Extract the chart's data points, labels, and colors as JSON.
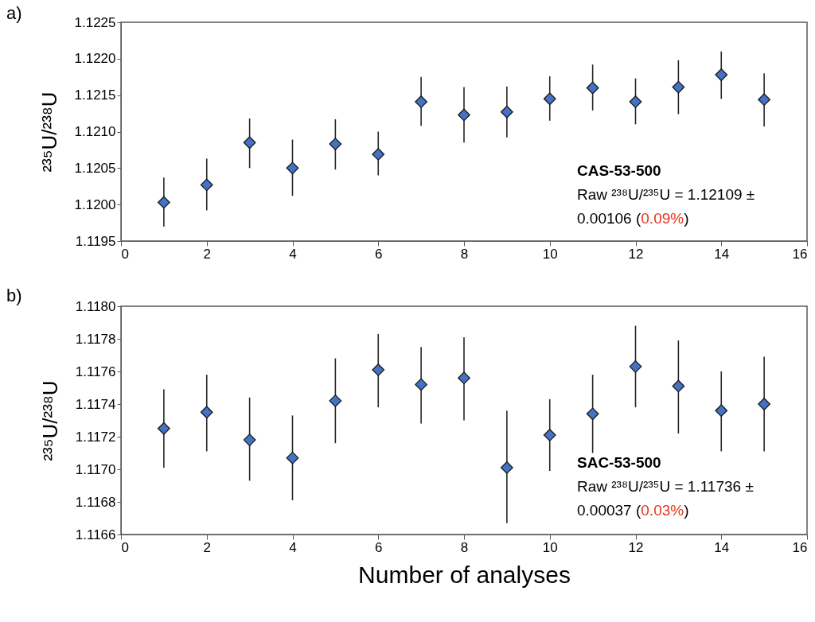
{
  "chart_data": [
    {
      "type": "scatter",
      "ylabel": "²³⁵U/²³⁸U",
      "marker": "diamond",
      "color": "#4472c4",
      "x": [
        1,
        2,
        3,
        4,
        5,
        6,
        7,
        8,
        9,
        10,
        11,
        12,
        13,
        14,
        15
      ],
      "values": [
        1.12003,
        1.12027,
        1.12085,
        1.1205,
        1.12083,
        1.12069,
        1.12141,
        1.12123,
        1.12127,
        1.12145,
        1.1216,
        1.12141,
        1.12161,
        1.12178,
        1.12144
      ],
      "errors": [
        [
          1.1197,
          1.12037
        ],
        [
          1.11992,
          1.12063
        ],
        [
          1.1205,
          1.12118
        ],
        [
          1.12012,
          1.12089
        ],
        [
          1.12048,
          1.12117
        ],
        [
          1.1204,
          1.121
        ],
        [
          1.12108,
          1.12175
        ],
        [
          1.12085,
          1.12161
        ],
        [
          1.12092,
          1.12162
        ],
        [
          1.12115,
          1.12176
        ],
        [
          1.12129,
          1.12192
        ],
        [
          1.1211,
          1.12173
        ],
        [
          1.12124,
          1.12198
        ],
        [
          1.12145,
          1.1221
        ],
        [
          1.12107,
          1.1218
        ]
      ],
      "xlim": [
        0,
        16
      ],
      "xticks": [
        0,
        2,
        4,
        6,
        8,
        10,
        12,
        14,
        16
      ],
      "ylim": [
        1.1195,
        1.1225
      ],
      "yticks": [
        1.1195,
        {
          "value": 1.12,
          "label": "1.1200"
        },
        1.1205,
        {
          "value": 1.121,
          "label": "1.1210"
        },
        1.1215,
        {
          "value": 1.122,
          "label": "1.1220"
        },
        1.1225
      ],
      "annotations": [
        "a)",
        "CAS-53-500",
        "Raw ²³⁸U/²³⁵U = 1.12109 ± 0.00106 (0.09%)"
      ]
    },
    {
      "type": "scatter",
      "ylabel": "²³⁵U/²³⁸U",
      "xlabel": "Number of analyses",
      "marker": "diamond",
      "color": "#4472c4",
      "x": [
        1,
        2,
        3,
        4,
        5,
        6,
        7,
        8,
        9,
        10,
        11,
        12,
        13,
        14,
        15
      ],
      "values": [
        1.11725,
        1.11735,
        1.11718,
        1.11707,
        1.11742,
        1.11761,
        1.11752,
        1.11756,
        1.11701,
        1.11721,
        1.11734,
        1.11763,
        1.11751,
        1.11736,
        1.1174
      ],
      "errors": [
        [
          1.11701,
          1.11749
        ],
        [
          1.11711,
          1.11758
        ],
        [
          1.11693,
          1.11744
        ],
        [
          1.11681,
          1.11733
        ],
        [
          1.11716,
          1.11768
        ],
        [
          1.11738,
          1.11783
        ],
        [
          1.11728,
          1.11775
        ],
        [
          1.1173,
          1.11781
        ],
        [
          1.11667,
          1.11736
        ],
        [
          1.11699,
          1.11743
        ],
        [
          1.1171,
          1.11758
        ],
        [
          1.11738,
          1.11788
        ],
        [
          1.11722,
          1.11779
        ],
        [
          1.11711,
          1.1176
        ],
        [
          1.11711,
          1.11769
        ]
      ],
      "xlim": [
        0,
        16
      ],
      "xticks": [
        0,
        2,
        4,
        6,
        8,
        10,
        12,
        14,
        16
      ],
      "ylim": [
        1.1166,
        1.118
      ],
      "yticks": [
        1.1166,
        1.1168,
        {
          "value": 1.117,
          "label": "1.1170"
        },
        1.1172,
        1.1174,
        1.1176,
        1.1178,
        {
          "value": 1.118,
          "label": "1.1180"
        }
      ],
      "annotations": [
        "b)",
        "SAC-53-500",
        "Raw ²³⁸U/²³⁵U = 1.11736 ± 0.00037 (0.03%)"
      ]
    }
  ]
}
